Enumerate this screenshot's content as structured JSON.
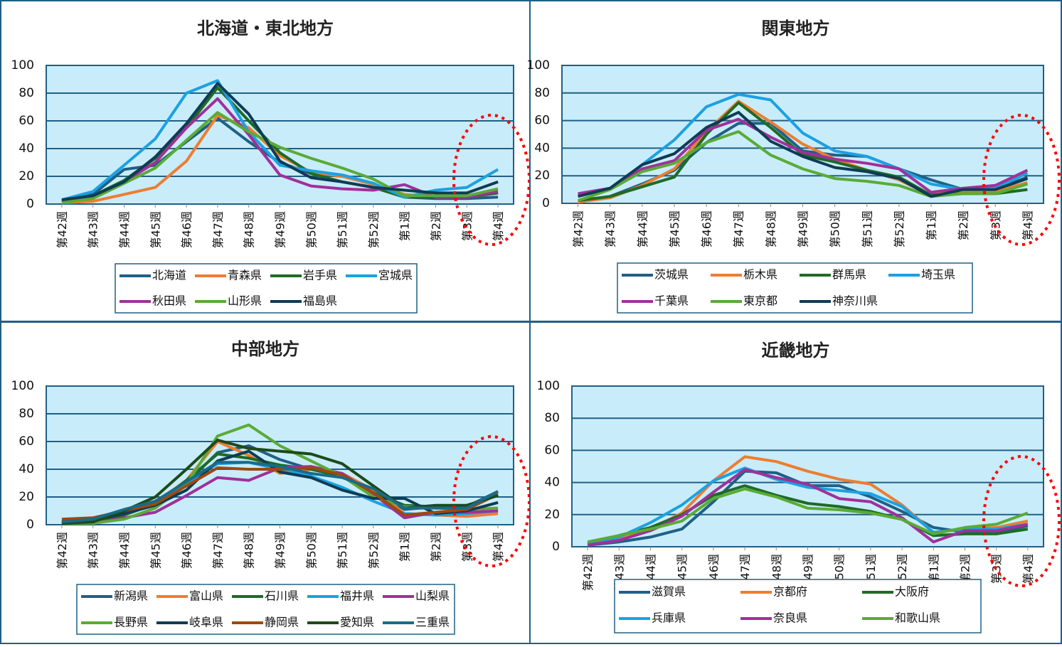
{
  "chart_data": [
    {
      "type": "line",
      "title": "北海道・東北地方",
      "ylim": [
        0,
        100
      ],
      "yticks": [
        0,
        20,
        40,
        60,
        80,
        100
      ],
      "grid": true,
      "legend_placement": "bottom",
      "categories": [
        "第42週",
        "第43週",
        "第44週",
        "第45週",
        "第46週",
        "第47週",
        "第48週",
        "第49週",
        "第50週",
        "第51週",
        "第52週",
        "第1週",
        "第2週",
        "第3週",
        "第4週"
      ],
      "highlight": {
        "categories": [
          "第3週",
          "第4週"
        ],
        "style": "red dotted ellipse"
      },
      "series": [
        {
          "name": "北海道",
          "color": "#1f6086",
          "values": [
            3,
            7,
            25,
            28,
            45,
            62,
            45,
            30,
            22,
            20,
            15,
            5,
            4,
            4,
            5
          ]
        },
        {
          "name": "青森県",
          "color": "#ed7d31",
          "values": [
            1,
            2,
            7,
            12,
            31,
            64,
            55,
            35,
            23,
            20,
            14,
            7,
            5,
            5,
            8
          ]
        },
        {
          "name": "岩手県",
          "color": "#1e6b24",
          "values": [
            2,
            6,
            17,
            33,
            55,
            84,
            60,
            37,
            22,
            16,
            12,
            5,
            5,
            5,
            8
          ]
        },
        {
          "name": "宮城県",
          "color": "#1ba1e2",
          "values": [
            3,
            9,
            28,
            47,
            80,
            89,
            52,
            28,
            24,
            21,
            15,
            5,
            10,
            12,
            25
          ]
        },
        {
          "name": "秋田県",
          "color": "#a0309a",
          "values": [
            2,
            5,
            16,
            30,
            55,
            76,
            50,
            21,
            13,
            11,
            10,
            14,
            5,
            5,
            9
          ]
        },
        {
          "name": "山形県",
          "color": "#5aab35",
          "values": [
            1,
            4,
            15,
            26,
            46,
            66,
            52,
            41,
            33,
            26,
            18,
            6,
            6,
            6,
            11
          ]
        },
        {
          "name": "福島県",
          "color": "#0e3c55",
          "values": [
            3,
            6,
            16,
            34,
            58,
            87,
            65,
            31,
            19,
            16,
            12,
            10,
            8,
            8,
            16
          ]
        }
      ]
    },
    {
      "type": "line",
      "title": "関東地方",
      "ylim": [
        0,
        100
      ],
      "yticks": [
        0,
        20,
        40,
        60,
        80,
        100
      ],
      "grid": true,
      "legend_placement": "bottom",
      "categories": [
        "第42週",
        "第43週",
        "第44週",
        "第45週",
        "第46週",
        "第47週",
        "第48週",
        "第49週",
        "第50週",
        "第51週",
        "第52週",
        "第1週",
        "第2週",
        "第3週",
        "第4週"
      ],
      "highlight": {
        "categories": [
          "第3週",
          "第4週"
        ],
        "style": "red dotted ellipse"
      },
      "series": [
        {
          "name": "茨城県",
          "color": "#1f6086",
          "values": [
            2,
            5,
            14,
            24,
            44,
            58,
            58,
            38,
            35,
            34,
            25,
            17,
            10,
            10,
            19
          ]
        },
        {
          "name": "栃木県",
          "color": "#ed7d31",
          "values": [
            1,
            4,
            13,
            25,
            52,
            74,
            59,
            43,
            32,
            24,
            17,
            6,
            9,
            9,
            15
          ]
        },
        {
          "name": "群馬県",
          "color": "#1e6b24",
          "values": [
            2,
            5,
            12,
            19,
            50,
            73,
            55,
            35,
            30,
            24,
            19,
            6,
            7,
            7,
            10
          ]
        },
        {
          "name": "埼玉県",
          "color": "#1ba1e2",
          "values": [
            6,
            11,
            28,
            46,
            70,
            79,
            75,
            51,
            38,
            34,
            25,
            14,
            10,
            11,
            22
          ]
        },
        {
          "name": "千葉県",
          "color": "#a0309a",
          "values": [
            7,
            11,
            25,
            31,
            53,
            61,
            48,
            37,
            32,
            29,
            25,
            8,
            11,
            13,
            24
          ]
        },
        {
          "name": "東京都",
          "color": "#5aab35",
          "values": [
            2,
            10,
            23,
            29,
            44,
            52,
            35,
            25,
            18,
            16,
            13,
            5,
            7,
            7,
            14
          ]
        },
        {
          "name": "神奈川県",
          "color": "#0e3c55",
          "values": [
            5,
            11,
            28,
            36,
            55,
            66,
            45,
            34,
            26,
            23,
            18,
            5,
            10,
            10,
            18
          ]
        }
      ]
    },
    {
      "type": "line",
      "title": "中部地方",
      "ylim": [
        0,
        100
      ],
      "yticks": [
        0,
        20,
        40,
        60,
        80,
        100
      ],
      "grid": true,
      "legend_placement": "bottom",
      "categories": [
        "第42週",
        "第43週",
        "第44週",
        "第45週",
        "第46週",
        "第47週",
        "第48週",
        "第49週",
        "第50週",
        "第51週",
        "第52週",
        "第1週",
        "第2週",
        "第3週",
        "第4週"
      ],
      "highlight": {
        "categories": [
          "第3週",
          "第4週"
        ],
        "style": "red dotted ellipse"
      },
      "series": [
        {
          "name": "新潟県",
          "color": "#1f6086",
          "values": [
            2,
            2,
            8,
            15,
            30,
            52,
            57,
            47,
            40,
            35,
            24,
            11,
            13,
            13,
            24
          ]
        },
        {
          "name": "富山県",
          "color": "#ed7d31",
          "values": [
            2,
            2,
            8,
            16,
            32,
            60,
            50,
            37,
            40,
            37,
            25,
            8,
            7,
            6,
            8
          ]
        },
        {
          "name": "石川県",
          "color": "#1e6b24",
          "values": [
            1,
            1,
            7,
            15,
            32,
            51,
            48,
            43,
            40,
            35,
            23,
            14,
            13,
            13,
            22
          ]
        },
        {
          "name": "福井県",
          "color": "#1ba1e2",
          "values": [
            2,
            3,
            9,
            17,
            30,
            44,
            45,
            40,
            35,
            27,
            17,
            8,
            7,
            8,
            10
          ]
        },
        {
          "name": "山梨県",
          "color": "#a0309a",
          "values": [
            2,
            1,
            5,
            9,
            21,
            34,
            32,
            41,
            42,
            37,
            22,
            5,
            9,
            9,
            10
          ]
        },
        {
          "name": "長野県",
          "color": "#5aab35",
          "values": [
            1,
            1,
            4,
            12,
            29,
            64,
            72,
            57,
            46,
            35,
            20,
            13,
            12,
            11,
            12
          ]
        },
        {
          "name": "岐阜県",
          "color": "#0e3c55",
          "values": [
            2,
            3,
            8,
            14,
            25,
            46,
            53,
            38,
            34,
            25,
            19,
            19,
            8,
            10,
            16
          ]
        },
        {
          "name": "静岡県",
          "color": "#9e480e",
          "values": [
            4,
            5,
            10,
            15,
            28,
            41,
            40,
            40,
            41,
            36,
            23,
            7,
            9,
            11,
            22
          ]
        },
        {
          "name": "愛知県",
          "color": "#1d4a17",
          "values": [
            1,
            2,
            10,
            20,
            40,
            61,
            55,
            53,
            51,
            44,
            28,
            12,
            14,
            14,
            21
          ]
        },
        {
          "name": "三重県",
          "color": "#1a6a8a",
          "values": [
            2,
            4,
            11,
            17,
            31,
            45,
            45,
            42,
            37,
            34,
            26,
            12,
            12,
            12,
            24
          ]
        }
      ]
    },
    {
      "type": "line",
      "title": "近畿地方",
      "ylim": [
        0,
        100
      ],
      "yticks": [
        0,
        20,
        40,
        60,
        80,
        100
      ],
      "grid": true,
      "legend_placement": "bottom",
      "categories": [
        "第42週",
        "第43週",
        "第44週",
        "第45週",
        "第46週",
        "第47週",
        "第48週",
        "第49週",
        "第50週",
        "第51週",
        "第52週",
        "第1週",
        "第2週",
        "第3週",
        "第4週"
      ],
      "highlight": {
        "categories": [
          "第3週",
          "第4週"
        ],
        "style": "red dotted ellipse"
      },
      "series": [
        {
          "name": "滋賀県",
          "color": "#1f6086",
          "values": [
            1,
            3,
            6,
            11,
            28,
            47,
            46,
            38,
            38,
            31,
            22,
            12,
            9,
            9,
            13
          ]
        },
        {
          "name": "京都府",
          "color": "#ed7d31",
          "values": [
            2,
            5,
            11,
            21,
            41,
            56,
            53,
            47,
            42,
            39,
            26,
            9,
            11,
            12,
            16
          ]
        },
        {
          "name": "大阪府",
          "color": "#1e6b24",
          "values": [
            2,
            7,
            12,
            20,
            32,
            38,
            32,
            27,
            25,
            22,
            17,
            7,
            8,
            8,
            11
          ]
        },
        {
          "name": "兵庫県",
          "color": "#1ba1e2",
          "values": [
            2,
            6,
            15,
            26,
            41,
            49,
            42,
            37,
            35,
            33,
            25,
            9,
            11,
            11,
            14
          ]
        },
        {
          "name": "奈良県",
          "color": "#a0309a",
          "values": [
            1,
            4,
            10,
            19,
            34,
            48,
            43,
            39,
            30,
            28,
            18,
            3,
            10,
            10,
            14
          ]
        },
        {
          "name": "和歌山県",
          "color": "#5aab35",
          "values": [
            3,
            7,
            11,
            16,
            30,
            36,
            31,
            24,
            23,
            21,
            17,
            8,
            12,
            14,
            21
          ]
        }
      ]
    }
  ]
}
